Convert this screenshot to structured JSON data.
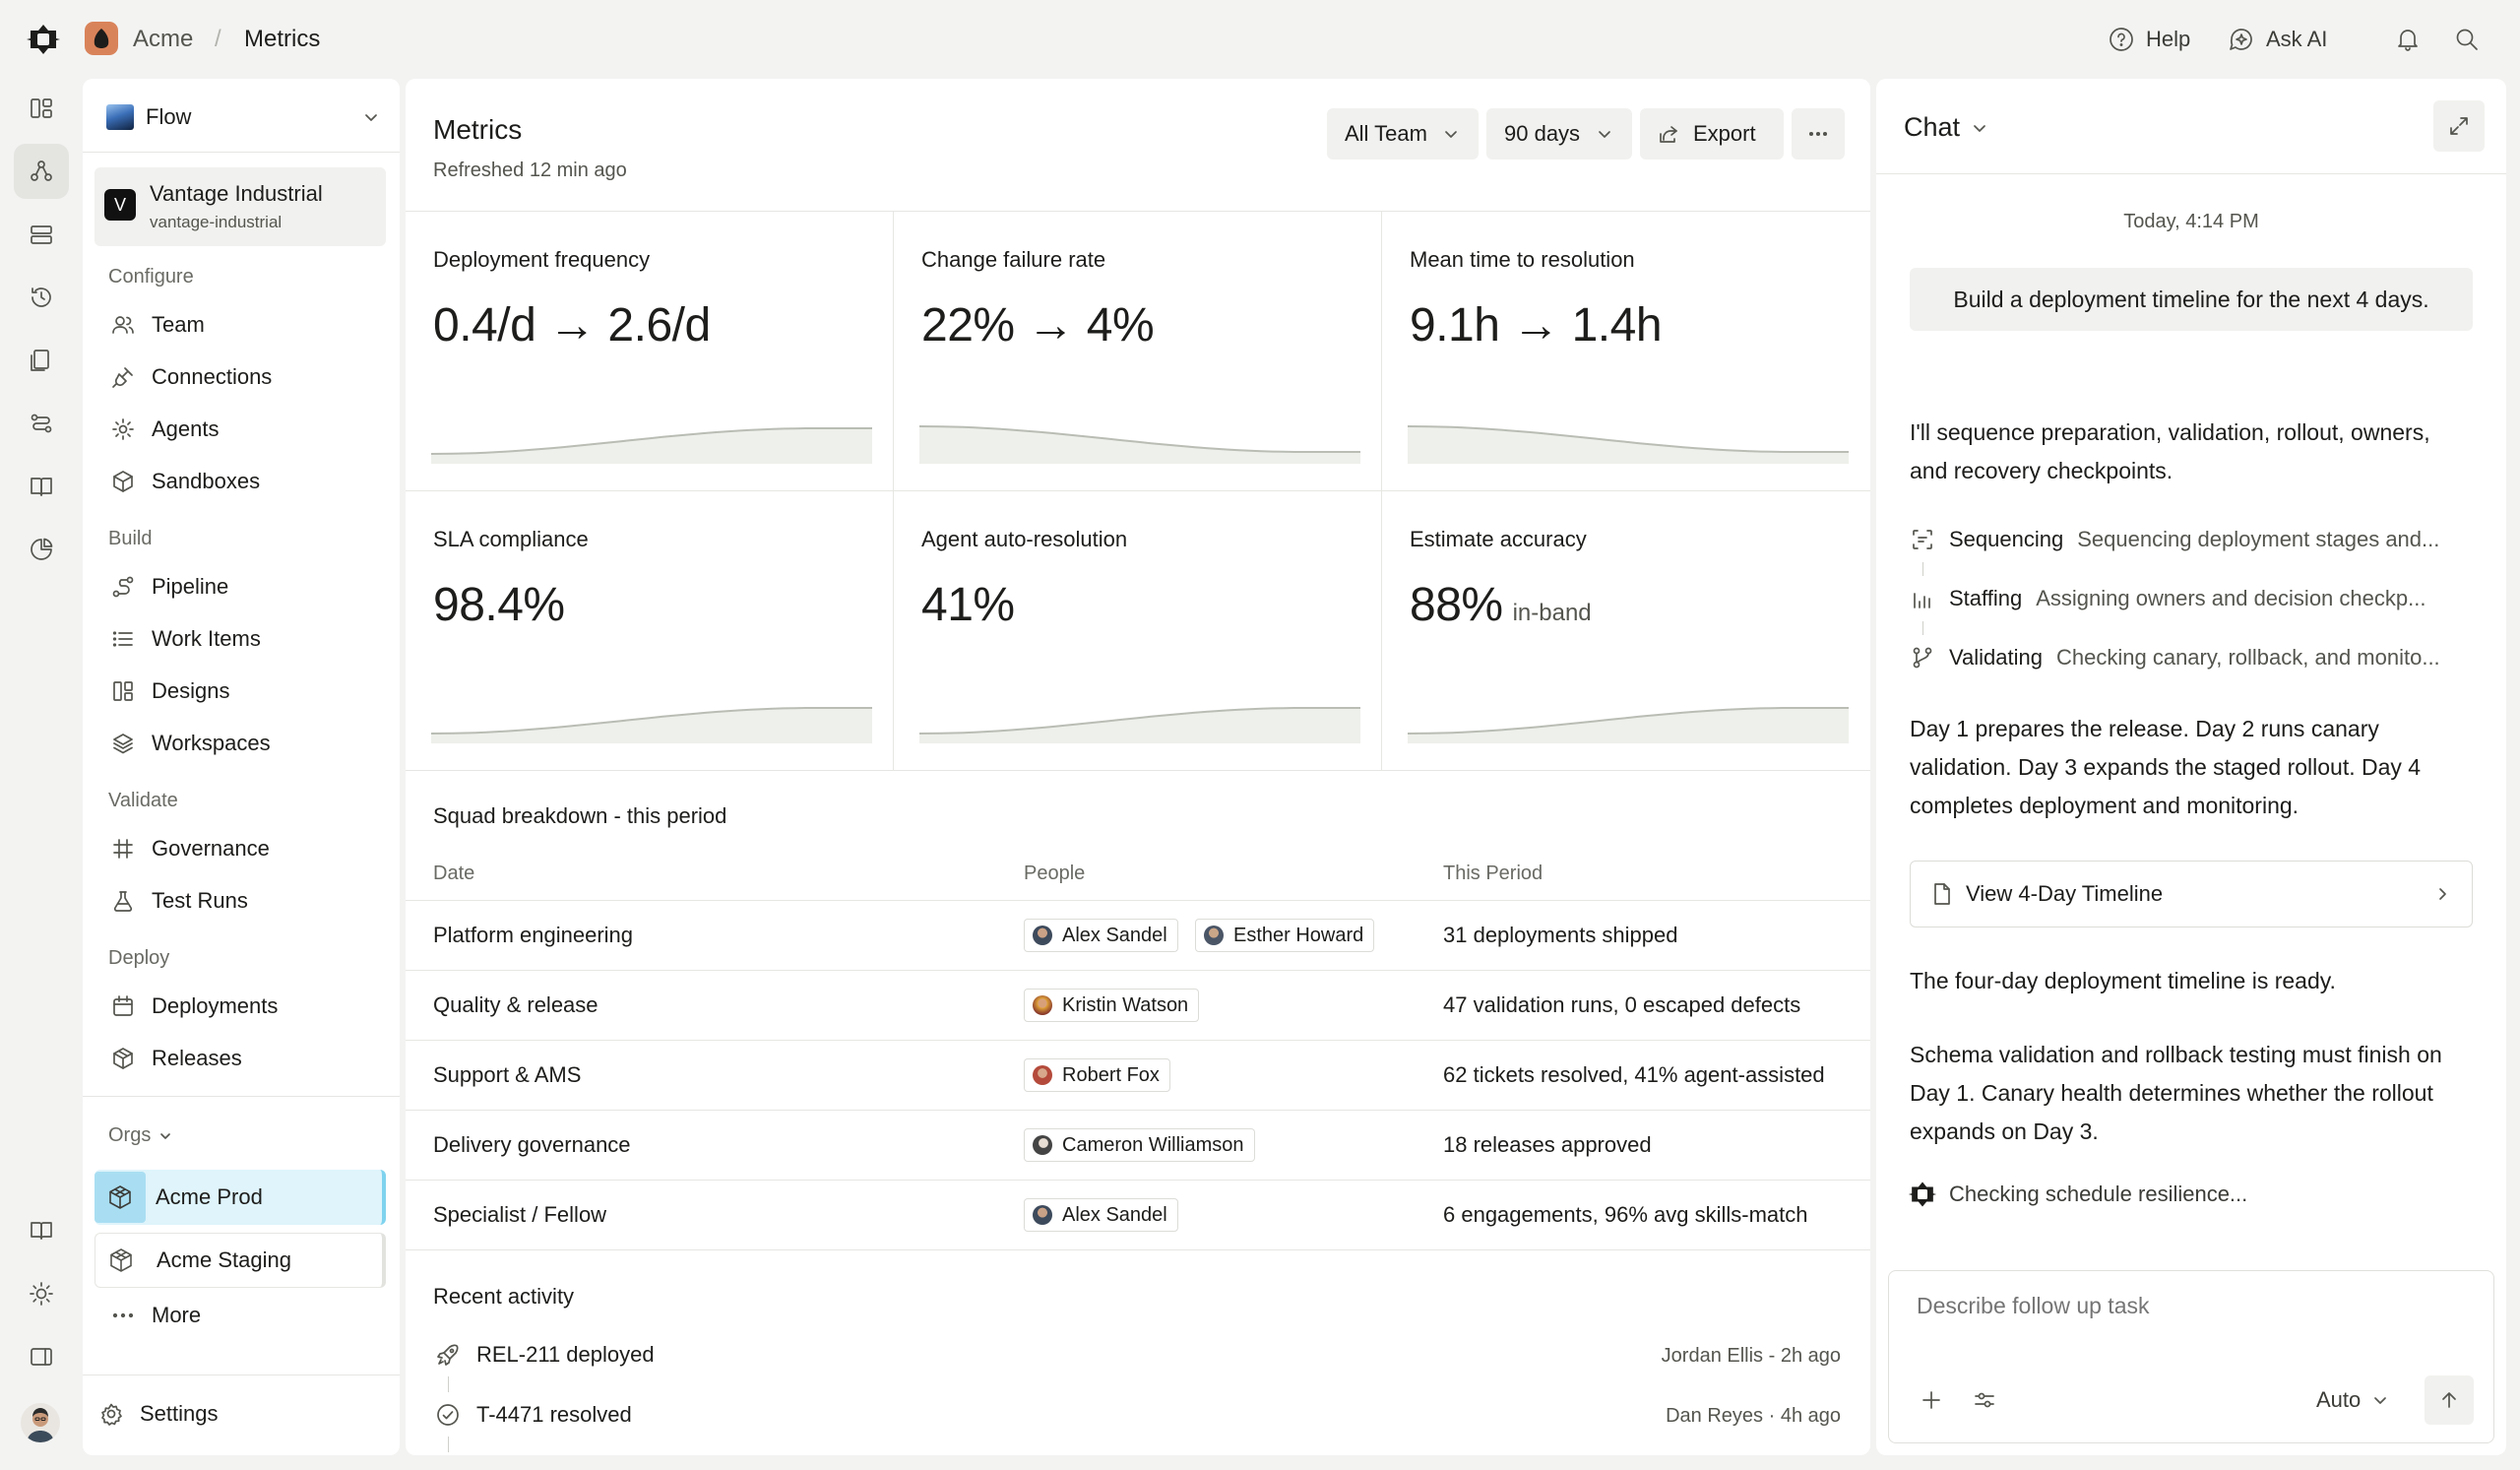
{
  "breadcrumb": {
    "org": "Acme",
    "separator": "/",
    "page": "Metrics"
  },
  "topbar": {
    "help_label": "Help",
    "ask_ai_label": "Ask AI"
  },
  "rail": {
    "icons": [
      "dashboard-icon",
      "flow-icon",
      "servers-icon",
      "history-icon",
      "docs-icon",
      "routes-icon",
      "book-icon",
      "chart-icon",
      "book-open-icon",
      "sun-icon",
      "sidebar-toggle-icon"
    ]
  },
  "nav": {
    "workspace": "Flow",
    "project": {
      "initial": "V",
      "name": "Vantage Industrial",
      "slug": "vantage-industrial"
    },
    "sections": {
      "configure": {
        "title": "Configure",
        "items": [
          "Team",
          "Connections",
          "Agents",
          "Sandboxes"
        ]
      },
      "build": {
        "title": "Build",
        "items": [
          "Pipeline",
          "Work Items",
          "Designs",
          "Workspaces"
        ]
      },
      "validate": {
        "title": "Validate",
        "items": [
          "Governance",
          "Test Runs"
        ]
      },
      "deploy": {
        "title": "Deploy",
        "items": [
          "Deployments",
          "Releases"
        ]
      }
    },
    "orgs_title": "Orgs",
    "orgs": [
      "Acme Prod",
      "Acme Staging"
    ],
    "more_label": "More",
    "settings_label": "Settings",
    "accent": "#dff4fb"
  },
  "metrics": {
    "title": "Metrics",
    "subtitle": "Refreshed 12 min ago",
    "filters": {
      "team": "All Team",
      "range": "90 days",
      "export_label": "Export"
    },
    "kpis": [
      {
        "label": "Deployment frequency",
        "value": "0.4/d → 2.6/d",
        "suffix": "",
        "trend": "up"
      },
      {
        "label": "Change failure rate",
        "value": "22% → 4%",
        "suffix": "",
        "trend": "down"
      },
      {
        "label": "Mean time to resolution",
        "value": "9.1h → 1.4h",
        "suffix": "",
        "trend": "down"
      },
      {
        "label": "SLA compliance",
        "value": "98.4%",
        "suffix": "",
        "trend": "up"
      },
      {
        "label": "Agent auto-resolution",
        "value": "41%",
        "suffix": "",
        "trend": "up"
      },
      {
        "label": "Estimate accuracy",
        "value": "88%",
        "suffix": "in-band",
        "trend": "up"
      }
    ],
    "table": {
      "title": "Squad breakdown - this period",
      "headers": [
        "Date",
        "People",
        "This Period"
      ],
      "rows": [
        {
          "squad": "Platform engineering",
          "people": [
            "Alex Sandel",
            "Esther Howard"
          ],
          "period": "31 deployments shipped"
        },
        {
          "squad": "Quality & release",
          "people": [
            "Kristin Watson"
          ],
          "period": "47 validation runs, 0 escaped defects"
        },
        {
          "squad": "Support & AMS",
          "people": [
            "Robert Fox"
          ],
          "period": "62 tickets resolved, 41% agent-assisted"
        },
        {
          "squad": "Delivery governance",
          "people": [
            "Cameron Williamson"
          ],
          "period": "18 releases approved"
        },
        {
          "squad": "Specialist / Fellow",
          "people": [
            "Alex Sandel"
          ],
          "period": "6 engagements, 96% avg skills-match"
        }
      ]
    },
    "activity": {
      "title": "Recent activity",
      "items": [
        {
          "text": "REL-211 deployed",
          "meta": "Jordan Ellis - 2h ago"
        },
        {
          "text": "T-4471 resolved",
          "meta": "Dan Reyes · 4h ago"
        }
      ]
    }
  },
  "chat": {
    "title": "Chat",
    "timestamp": "Today, 4:14 PM",
    "user_message": "Build a deployment timeline for the next 4 days.",
    "intro": "I'll sequence preparation, validation, rollout, owners, and recovery checkpoints.",
    "steps": [
      {
        "title": "Sequencing",
        "detail": "Sequencing deployment stages and..."
      },
      {
        "title": "Staffing",
        "detail": "Assigning owners and decision checkp..."
      },
      {
        "title": "Validating",
        "detail": "Checking canary, rollback, and monito..."
      }
    ],
    "summary": "Day 1 prepares the release. Day 2 runs canary validation. Day 3 expands the staged rollout. Day 4 completes deployment and monitoring.",
    "timeline_card": "View 4-Day Timeline",
    "ready": "The four-day deployment timeline is ready.",
    "note": "Schema validation and rollback testing must finish on Day 1. Canary health determines whether the rollout expands on Day 3.",
    "status": "Checking schedule resilience...",
    "composer": {
      "placeholder": "Describe follow up task",
      "model": "Auto"
    }
  }
}
